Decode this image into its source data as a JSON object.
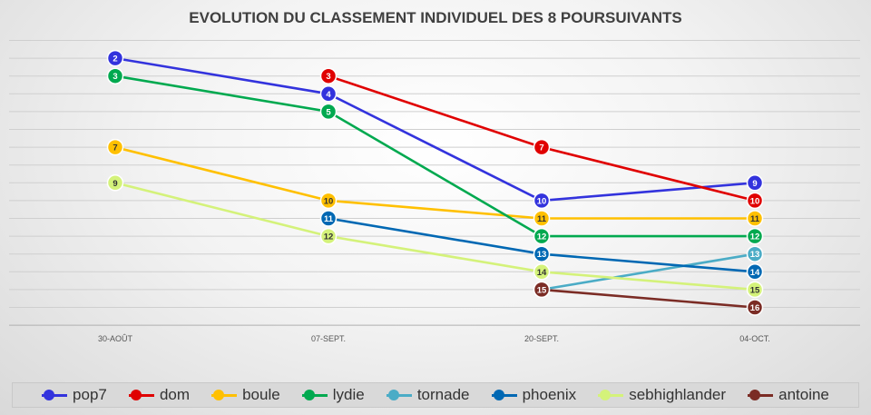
{
  "chart_data": {
    "type": "line",
    "title": "EVOLUTION DU CLASSEMENT INDIVIDUEL DES 8 POURSUIVANTS",
    "categories": [
      "30-AOÛT",
      "07-SEPT.",
      "20-SEPT.",
      "04-OCT."
    ],
    "y_reversed": true,
    "ylim": [
      1,
      17
    ],
    "grid": true,
    "legend_position": "bottom",
    "series": [
      {
        "name": "pop7",
        "color": "#3333dd",
        "values": [
          2,
          4,
          10,
          9
        ]
      },
      {
        "name": "dom",
        "color": "#e00000",
        "values": [
          null,
          3,
          7,
          10
        ]
      },
      {
        "name": "boule",
        "color": "#ffc000",
        "values": [
          7,
          10,
          11,
          11
        ]
      },
      {
        "name": "lydie",
        "color": "#00a94f",
        "values": [
          3,
          5,
          12,
          12
        ]
      },
      {
        "name": "tornade",
        "color": "#4bacc6",
        "values": [
          null,
          null,
          15,
          13
        ]
      },
      {
        "name": "phoenix",
        "color": "#0068b3",
        "values": [
          null,
          11,
          13,
          14
        ]
      },
      {
        "name": "sebhighlander",
        "color": "#d4f27a",
        "values": [
          9,
          12,
          14,
          15
        ]
      },
      {
        "name": "antoine",
        "color": "#7b2c25",
        "values": [
          null,
          null,
          15,
          16
        ]
      }
    ]
  }
}
